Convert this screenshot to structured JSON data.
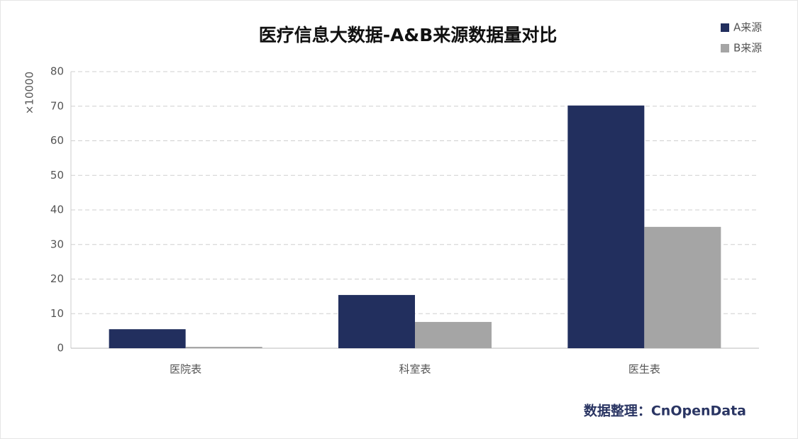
{
  "chart_data": {
    "type": "bar",
    "title": "医疗信息大数据-A&B来源数据量对比",
    "y_label": "×10000",
    "note": "数据整理：CnOpenData",
    "categories": [
      "医院表",
      "科室表",
      "医生表"
    ],
    "series": [
      {
        "name": "A来源",
        "color": "#222f5e",
        "values": [
          5.5,
          15.4,
          70.2
        ]
      },
      {
        "name": "B来源",
        "color": "#a5a5a5",
        "values": [
          0.4,
          7.6,
          35.1
        ]
      }
    ],
    "ylim": [
      0,
      80
    ],
    "yticks": [
      0,
      10,
      20,
      30,
      40,
      50,
      60,
      70,
      80
    ],
    "grid": true,
    "legend": "top-right"
  }
}
